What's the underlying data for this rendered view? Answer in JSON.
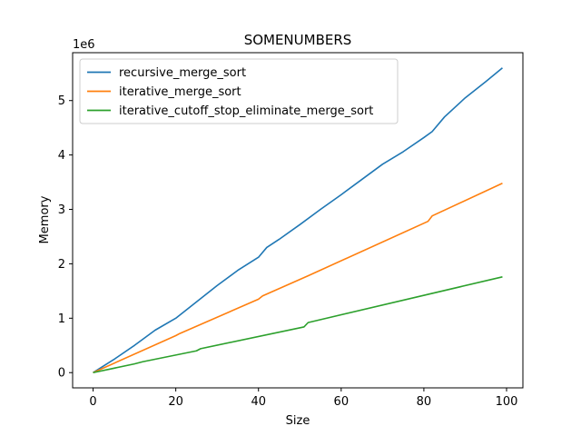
{
  "chart_data": {
    "type": "line",
    "title": "SOMENUMBERS",
    "xlabel": "Size",
    "ylabel": "Memory",
    "y_offset_label": "1e6",
    "xlim": [
      -4.95,
      103.95
    ],
    "ylim": [
      -0.28,
      5.88
    ],
    "x_ticks": [
      0,
      20,
      40,
      60,
      80,
      100
    ],
    "x_tick_labels": [
      "0",
      "20",
      "40",
      "60",
      "80",
      "100"
    ],
    "y_ticks": [
      0,
      1,
      2,
      3,
      4,
      5
    ],
    "y_tick_labels": [
      "0",
      "1",
      "2",
      "3",
      "4",
      "5"
    ],
    "y_unit_multiplier": 1000000,
    "grid": false,
    "legend_position": "upper-left",
    "series": [
      {
        "name": "recursive_merge_sort",
        "color": "#1f77b4",
        "points": [
          [
            0,
            0
          ],
          [
            5,
            0.24
          ],
          [
            10,
            0.5
          ],
          [
            15,
            0.78
          ],
          [
            20,
            1.0
          ],
          [
            25,
            1.3
          ],
          [
            30,
            1.6
          ],
          [
            35,
            1.88
          ],
          [
            40,
            2.12
          ],
          [
            42,
            2.3
          ],
          [
            45,
            2.45
          ],
          [
            50,
            2.72
          ],
          [
            55,
            3.0
          ],
          [
            60,
            3.27
          ],
          [
            65,
            3.55
          ],
          [
            70,
            3.83
          ],
          [
            75,
            4.06
          ],
          [
            80,
            4.32
          ],
          [
            82,
            4.43
          ],
          [
            85,
            4.7
          ],
          [
            90,
            5.05
          ],
          [
            95,
            5.35
          ],
          [
            99,
            5.6
          ]
        ]
      },
      {
        "name": "iterative_merge_sort",
        "color": "#ff7f0e",
        "points": [
          [
            0,
            0
          ],
          [
            20,
            0.68
          ],
          [
            21,
            0.72
          ],
          [
            40,
            1.35
          ],
          [
            41,
            1.41
          ],
          [
            52,
            1.78
          ],
          [
            81,
            2.78
          ],
          [
            82,
            2.88
          ],
          [
            99,
            3.48
          ]
        ]
      },
      {
        "name": "iterative_cutoff_stop_eliminate_merge_sort",
        "color": "#2ca02c",
        "points": [
          [
            0,
            0
          ],
          [
            10,
            0.16
          ],
          [
            12,
            0.2
          ],
          [
            25,
            0.4
          ],
          [
            26,
            0.44
          ],
          [
            51,
            0.84
          ],
          [
            52,
            0.92
          ],
          [
            99,
            1.76
          ]
        ]
      }
    ]
  }
}
